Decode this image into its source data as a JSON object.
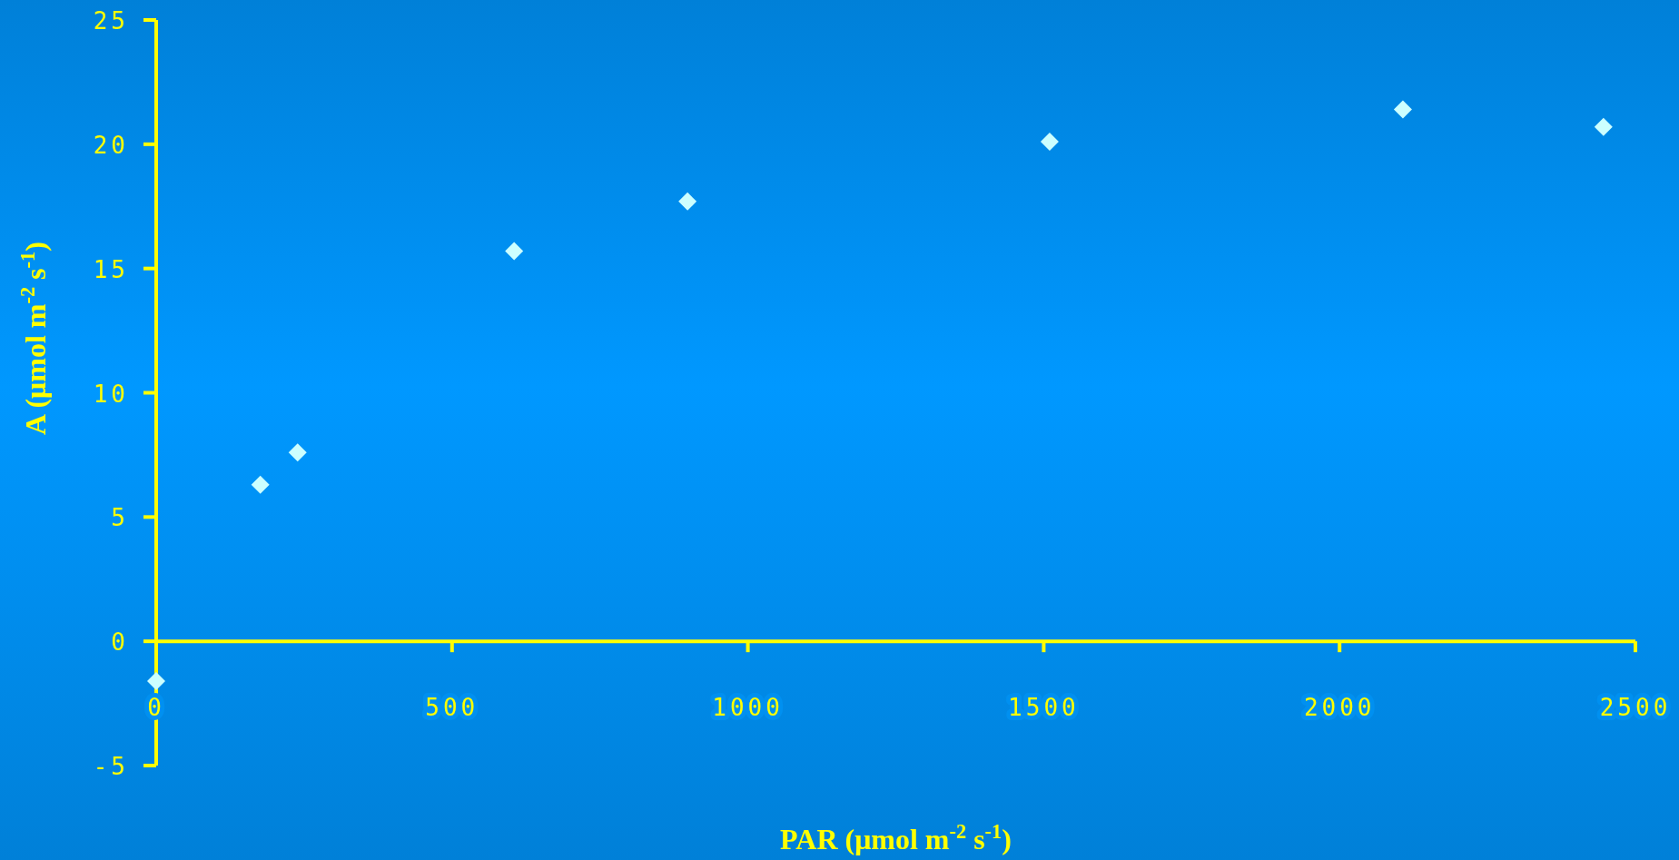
{
  "chart_data": {
    "type": "scatter",
    "xlabel": "PAR  (μmol m$^{-2}$ s$^{-1}$)",
    "ylabel": "A  (μmol m$^{-2}$ s$^{-1}$)",
    "x": [
      0,
      176,
      239,
      605,
      898,
      1510,
      2107,
      2446
    ],
    "series": [
      {
        "color": "#ccffff",
        "values": [
          -1.6,
          6.3,
          7.6,
          15.7,
          17.7,
          20.1,
          21.4,
          20.7
        ]
      }
    ],
    "marker": "diamond",
    "xlim": [
      0,
      2500
    ],
    "ylim": [
      -5,
      25
    ],
    "xticks": [
      0,
      500,
      1000,
      1500,
      2000,
      2500
    ],
    "yticks": [
      -5,
      0,
      5,
      10,
      15,
      20,
      25
    ]
  }
}
